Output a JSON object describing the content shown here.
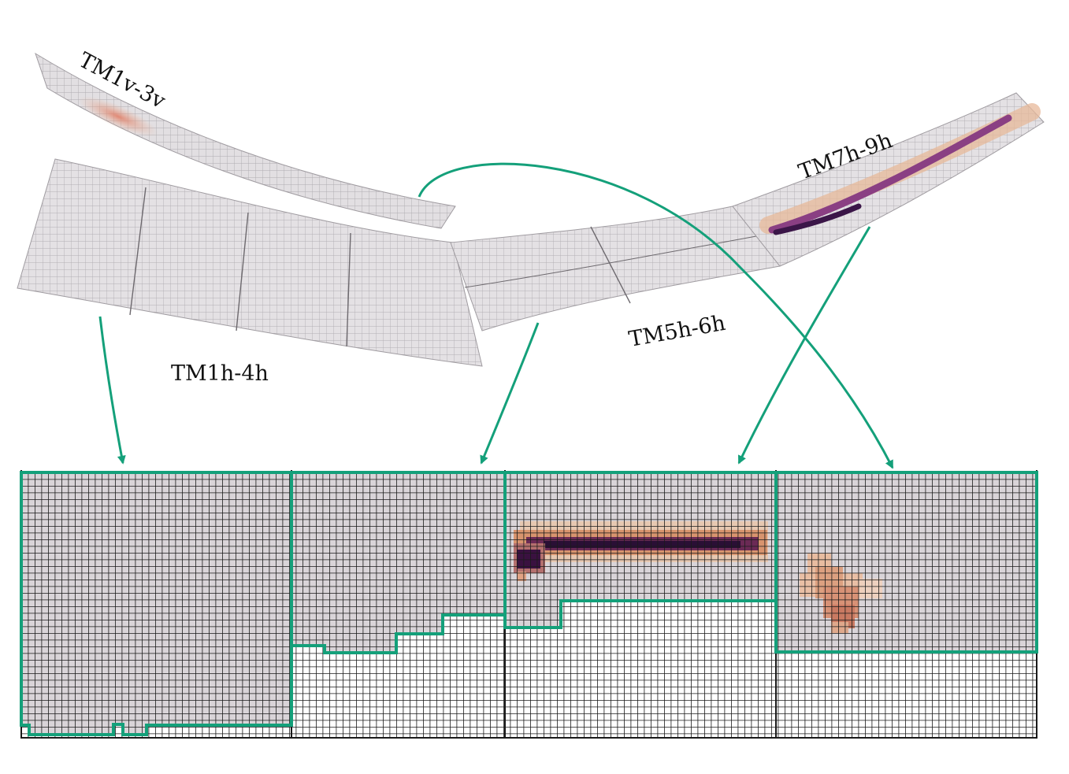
{
  "labels": {
    "tm1v_3v": "TM1v-3v",
    "tm1h_4h": "TM1h-4h",
    "tm5h_6h": "TM5h-6h",
    "tm7h_9h": "TM7h-9h"
  },
  "colors": {
    "outline": "#14a07a",
    "cell_fill": "#d9d4d8",
    "grid_line": "#1a1a1a",
    "detector": "#e4e1e4",
    "detector_edge": "#a7a3a8"
  }
}
